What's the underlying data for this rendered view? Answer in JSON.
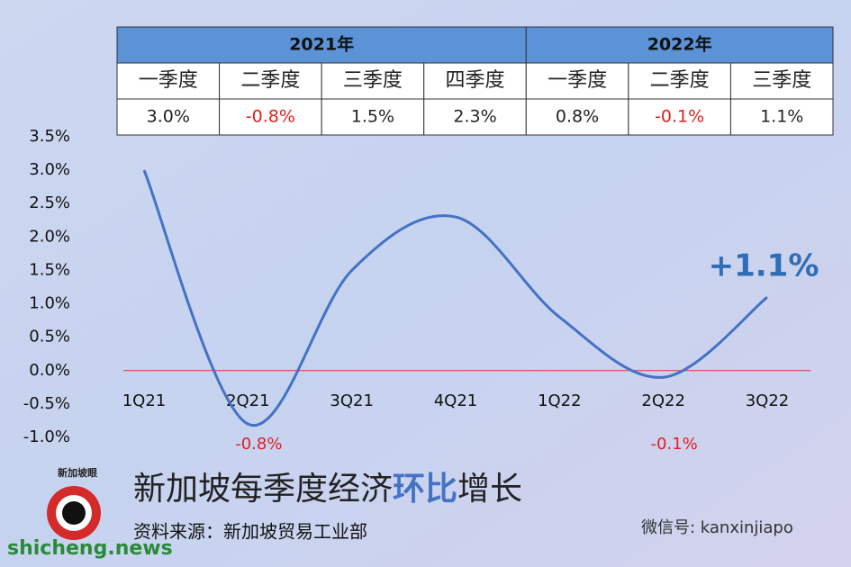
{
  "chart_data": {
    "type": "line",
    "title_parts": [
      "新加坡每季度经济",
      "环比",
      "增长"
    ],
    "source": "资料来源：新加坡贸易工业部",
    "categories": [
      "1Q21",
      "2Q21",
      "3Q21",
      "4Q21",
      "1Q22",
      "2Q22",
      "3Q22"
    ],
    "values": [
      3.0,
      -0.8,
      1.5,
      2.3,
      0.8,
      -0.1,
      1.1
    ],
    "value_labels": [
      null,
      "-0.8%",
      null,
      null,
      null,
      "-0.1%",
      "+1.1%"
    ],
    "color": "#4472c4",
    "zero_line_color": "#e03030",
    "ylim": [
      -1.0,
      3.5
    ],
    "yticks": [
      {
        "value": -1.0,
        "label": "-1.0%"
      },
      {
        "value": -0.5,
        "label": "-0.5%"
      },
      {
        "value": 0,
        "label": "0.0%"
      },
      {
        "value": 0.5,
        "label": "0.5%"
      },
      {
        "value": 1.0,
        "label": "1.0%"
      },
      {
        "value": 1.5,
        "label": "1.5%"
      },
      {
        "value": 2.0,
        "label": "2.0%"
      },
      {
        "value": 2.5,
        "label": "2.5%"
      },
      {
        "value": 3.0,
        "label": "3.0%"
      },
      {
        "value": 3.5,
        "label": "3.5%"
      }
    ]
  },
  "table": {
    "groups": [
      {
        "year": "2021年",
        "quarters": [
          "一季度",
          "二季度",
          "三季度",
          "四季度"
        ],
        "values": [
          "3.0%",
          "-0.8%",
          "1.5%",
          "2.3%"
        ]
      },
      {
        "year": "2022年",
        "quarters": [
          "一季度",
          "二季度",
          "三季度"
        ],
        "values": [
          "0.8%",
          "-0.1%",
          "1.1%"
        ]
      }
    ]
  },
  "branding": {
    "logo": "新加坡眼",
    "wechat": "微信号: kanxinjiapo",
    "site": "shicheng.news"
  }
}
